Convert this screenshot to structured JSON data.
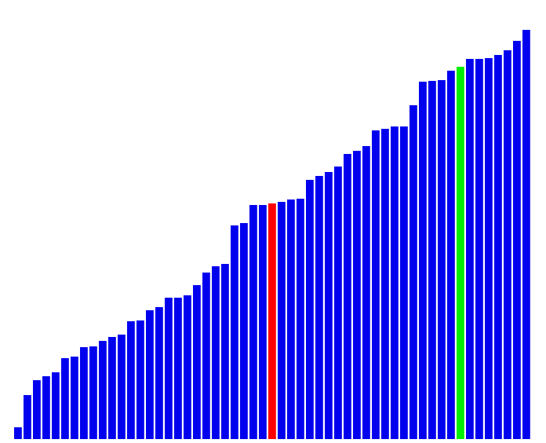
{
  "colors": {
    "background": "#ffffff",
    "bar_default": "#0000ee",
    "bar_highlight_red": "#ff0000",
    "bar_highlight_green": "#00ee00"
  },
  "chart_data": {
    "type": "bar",
    "title": "",
    "xlabel": "",
    "ylabel": "",
    "ylim": [
      0,
      525
    ],
    "grid": false,
    "legend": "none",
    "values": [
      15,
      56,
      75,
      80,
      85,
      103,
      105,
      117,
      118,
      125,
      130,
      133,
      150,
      151,
      164,
      168,
      180,
      180,
      183,
      196,
      212,
      220,
      223,
      272,
      275,
      298,
      298,
      300,
      302,
      305,
      306,
      330,
      335,
      340,
      347,
      363,
      367,
      373,
      393,
      395,
      398,
      398,
      425,
      455,
      456,
      457,
      469,
      474,
      484,
      484,
      485,
      489,
      495,
      507,
      521
    ],
    "highlights": [
      {
        "index": 27,
        "color": "red"
      },
      {
        "index": 47,
        "color": "green"
      }
    ]
  }
}
